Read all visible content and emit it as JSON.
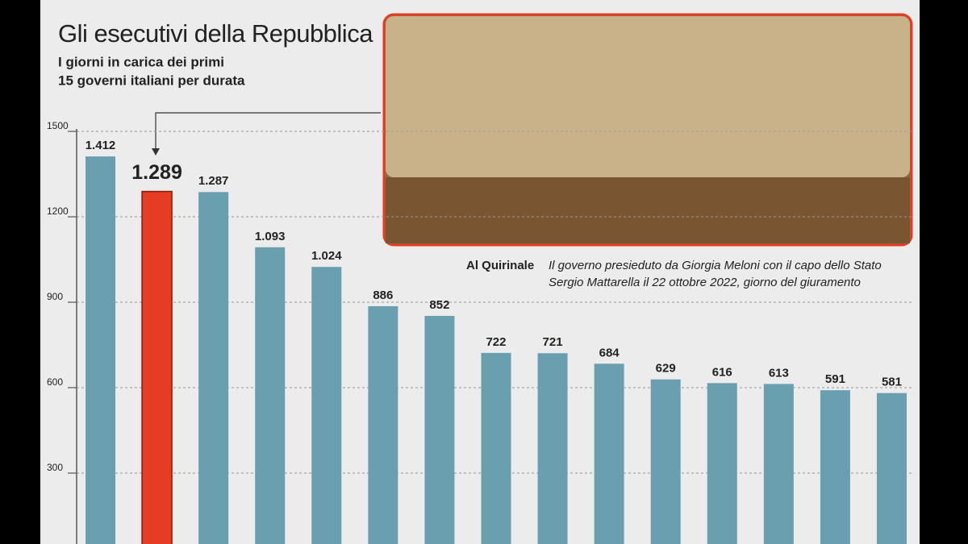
{
  "chart_data": {
    "type": "bar",
    "title": "Gli esecutivi della Repubblica",
    "subtitle": [
      "I giorni in carica dei primi",
      "15 governi italiani per durata"
    ],
    "values": [
      1412,
      1289,
      1287,
      1093,
      1024,
      886,
      852,
      722,
      721,
      684,
      629,
      616,
      613,
      591,
      581
    ],
    "value_labels": [
      "1.412",
      "1.289",
      "1.287",
      "1.093",
      "1.024",
      "886",
      "852",
      "722",
      "721",
      "684",
      "629",
      "616",
      "613",
      "591",
      "581"
    ],
    "colors": [
      "#6a9fb0",
      "#e63c24",
      "#6a9fb0",
      "#6a9fb0",
      "#6a9fb0",
      "#6a9fb0",
      "#6a9fb0",
      "#6a9fb0",
      "#6a9fb0",
      "#6a9fb0",
      "#6a9fb0",
      "#6a9fb0",
      "#6a9fb0",
      "#6a9fb0",
      "#6a9fb0"
    ],
    "highlight_index": 1,
    "ylim": [
      0,
      1500
    ],
    "yticks": [
      300,
      600,
      900,
      1200,
      1500
    ],
    "grid": true,
    "annotation": {
      "title": "Al Quirinale",
      "lines": [
        "Il governo presieduto da Giorgia Meloni con il capo dello Stato",
        "Sergio Mattarella il 22 ottobre 2022, giorno del giuramento"
      ]
    }
  }
}
